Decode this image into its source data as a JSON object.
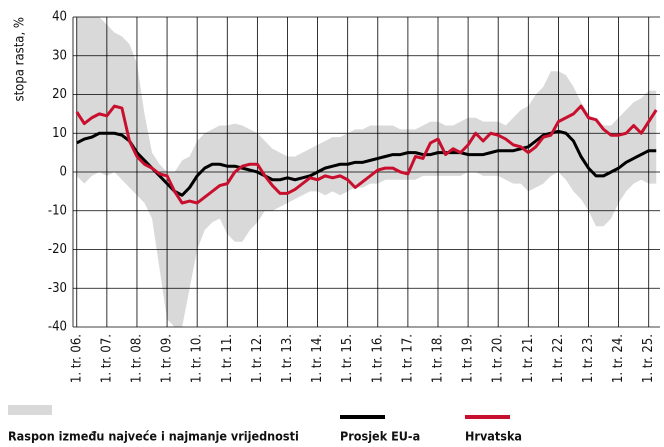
{
  "chart_data": {
    "type": "line",
    "y_label": "stopa rasta, %",
    "categories": [
      "1. tr. 06.",
      null,
      null,
      null,
      "1. tr. 07.",
      null,
      null,
      null,
      "1. tr. 08.",
      null,
      null,
      null,
      "1. tr. 09.",
      null,
      null,
      null,
      "1. tr. 10.",
      null,
      null,
      null,
      "1. tr. 11.",
      null,
      null,
      null,
      "1. tr. 12.",
      null,
      null,
      null,
      "1. tr. 13.",
      null,
      null,
      null,
      "1. tr. 14.",
      null,
      null,
      null,
      "1. tr. 15.",
      null,
      null,
      null,
      "1. tr. 16.",
      null,
      null,
      null,
      "1. tr. 17.",
      null,
      null,
      null,
      "1. tr. 18.",
      null,
      null,
      null,
      "1. tr. 19.",
      null,
      null,
      null,
      "1. tr. 20.",
      null,
      null,
      null,
      "1. tr. 21.",
      null,
      null,
      null,
      "1. tr. 22.",
      null,
      null,
      null,
      "1. tr. 23.",
      null,
      null,
      null,
      "1. tr. 24.",
      null,
      null,
      null,
      "1. tr. 25.",
      null
    ],
    "band": {
      "name": "Raspon između najveće i najmanje vrijednosti",
      "color": "#d9d9d9",
      "upper": [
        40,
        40,
        40,
        40,
        38,
        36,
        35,
        33,
        28,
        15,
        5,
        2,
        0,
        0,
        3,
        4,
        8,
        10,
        11,
        12,
        12,
        12.5,
        12,
        11,
        10,
        8,
        6,
        5,
        4,
        4,
        5,
        6,
        7,
        8,
        9,
        9,
        10,
        11,
        11,
        12,
        12,
        12,
        12,
        11,
        11,
        11,
        12,
        13,
        13,
        12,
        12,
        13,
        14,
        14,
        13,
        13,
        13,
        12,
        14,
        16,
        17,
        20,
        22,
        26,
        26,
        25,
        22,
        18,
        15,
        13,
        12,
        12,
        14,
        16,
        18,
        19,
        21,
        21
      ],
      "lower": [
        -1,
        -3,
        -1,
        0,
        -1,
        0,
        -2,
        -4,
        -6,
        -8,
        -12,
        -25,
        -38,
        -40,
        -40,
        -30,
        -20,
        -15,
        -13,
        -12,
        -16,
        -18,
        -18,
        -15,
        -13,
        -10,
        -10,
        -9,
        -8,
        -7,
        -6,
        -5,
        -5,
        -6,
        -5,
        -6,
        -5,
        -4,
        -4,
        -3,
        -3,
        -2,
        -2,
        -2,
        -2,
        -2,
        -1,
        -1,
        -1,
        -1,
        -1,
        -1,
        0,
        0,
        -1,
        -1,
        -1,
        -2,
        -3,
        -3,
        -5,
        -4,
        -3,
        -1,
        0,
        -2,
        -5,
        -7,
        -10,
        -14,
        -14,
        -12,
        -8,
        -5,
        -3,
        -2,
        -3,
        -3
      ]
    },
    "series": [
      {
        "name": "Prosjek EU-a",
        "color": "#000000",
        "values": [
          7.5,
          8.5,
          9,
          10,
          10,
          10,
          9.5,
          8,
          5,
          3,
          1,
          -1,
          -3,
          -5,
          -6,
          -4,
          -1,
          1,
          2,
          2,
          1.5,
          1.5,
          1,
          0.5,
          0,
          -1,
          -2,
          -2,
          -1.5,
          -2,
          -1.5,
          -1,
          0,
          1,
          1.5,
          2,
          2,
          2.5,
          2.5,
          3,
          3.5,
          4,
          4.5,
          4.5,
          5,
          5,
          4.5,
          4.5,
          5,
          5,
          5,
          5,
          4.5,
          4.5,
          4.5,
          5,
          5.5,
          5.5,
          5.5,
          6,
          6.5,
          8,
          9.5,
          10,
          10.5,
          10,
          8,
          4,
          1,
          -1,
          -1,
          0,
          1,
          2.5,
          3.5,
          4.5,
          5.5,
          5.5
        ]
      },
      {
        "name": "Hrvatska",
        "color": "#c8102e",
        "values": [
          15.5,
          12.5,
          14,
          15,
          14.5,
          17,
          16.5,
          8,
          4,
          2,
          1,
          -0.5,
          -1,
          -5,
          -8,
          -7.5,
          -8,
          -6.5,
          -5,
          -3.5,
          -3,
          0,
          1.5,
          2,
          2,
          -1,
          -3.5,
          -5.5,
          -5.5,
          -4.5,
          -3,
          -1.5,
          -2,
          -1,
          -1.5,
          -1,
          -2,
          -4,
          -2.5,
          -1,
          0.5,
          1,
          1,
          0,
          -0.5,
          4,
          3.5,
          7.5,
          8.5,
          4.5,
          6,
          5,
          7,
          10,
          8,
          10,
          9.5,
          8.5,
          7,
          6.5,
          5,
          6.5,
          9,
          9.5,
          13,
          14,
          15,
          17,
          14,
          13.5,
          11,
          9.5,
          9.5,
          10,
          12,
          10,
          13,
          16
        ]
      }
    ],
    "ylim": [
      -40,
      40
    ],
    "yticks": [
      -40,
      -30,
      -20,
      -10,
      0,
      10,
      20,
      30,
      40
    ],
    "grid": true
  }
}
